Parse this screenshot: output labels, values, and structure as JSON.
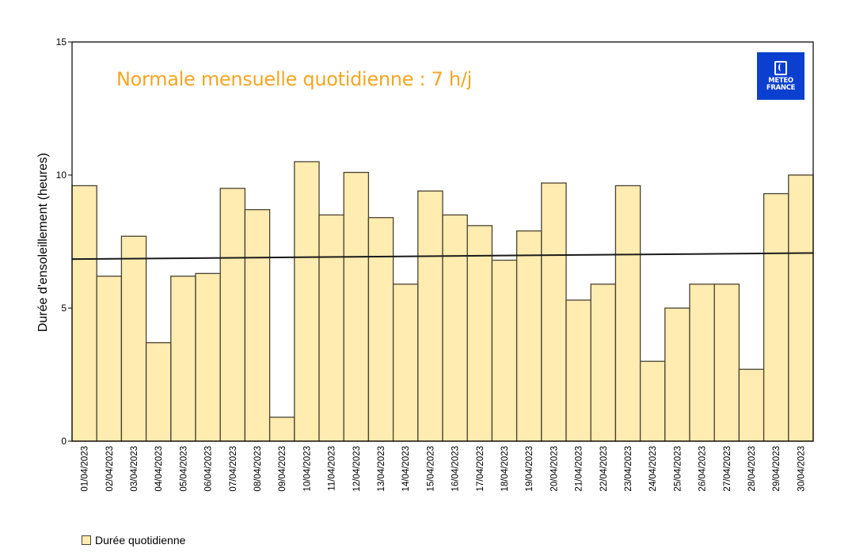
{
  "chart_data": {
    "type": "bar",
    "title": "",
    "annotation": "Normale mensuelle quotidienne : 7 h/j",
    "xlabel": "",
    "ylabel": "Durée d'ensoleillement (heures)",
    "ylim": [
      0,
      15
    ],
    "yticks": [
      0,
      5,
      10,
      15
    ],
    "grid": false,
    "legend_position": "bottom-left",
    "categories": [
      "01/04/2023",
      "02/04/2023",
      "03/04/2023",
      "04/04/2023",
      "05/04/2023",
      "06/04/2023",
      "07/04/2023",
      "08/04/2023",
      "09/04/2023",
      "10/04/2023",
      "11/04/2023",
      "12/04/2023",
      "13/04/2023",
      "14/04/2023",
      "15/04/2023",
      "16/04/2023",
      "17/04/2023",
      "18/04/2023",
      "19/04/2023",
      "20/04/2023",
      "21/04/2023",
      "22/04/2023",
      "23/04/2023",
      "24/04/2023",
      "25/04/2023",
      "26/04/2023",
      "27/04/2023",
      "28/04/2023",
      "29/04/2023",
      "30/04/2023"
    ],
    "series": [
      {
        "name": "Durée quotidienne",
        "color": "#ffecb0",
        "values": [
          9.6,
          6.2,
          7.7,
          3.7,
          6.2,
          6.3,
          9.5,
          8.7,
          0.9,
          10.5,
          8.5,
          10.1,
          8.4,
          5.9,
          9.4,
          8.5,
          8.1,
          6.8,
          7.9,
          9.7,
          5.3,
          5.9,
          9.6,
          3.0,
          5.0,
          5.9,
          5.9,
          2.7,
          9.3,
          10.0
        ]
      }
    ],
    "trend_line": {
      "start": 6.84,
      "end": 7.07,
      "color": "#1a1a1a"
    }
  },
  "annotation_text": "Normale mensuelle quotidienne : 7 h/j",
  "logo": {
    "line1": "METEO",
    "line2": "FRANCE",
    "color": "#0b3fd0"
  },
  "legend": {
    "label": "Durée quotidienne"
  },
  "colors": {
    "bar_fill": "#ffecb0",
    "bar_stroke": "#4a4232",
    "annotation": "#f5a623"
  }
}
